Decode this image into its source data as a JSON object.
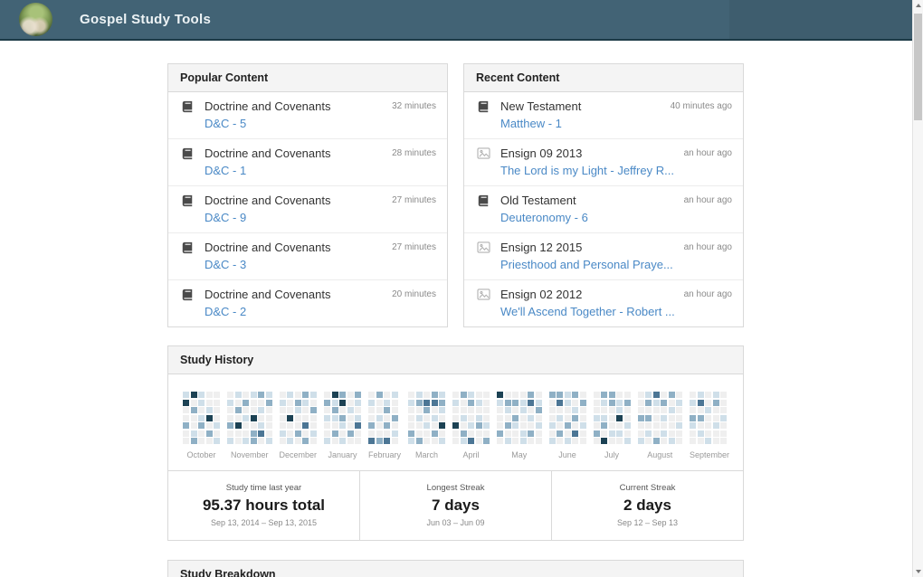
{
  "header": {
    "title": "Gospel Study Tools"
  },
  "popular": {
    "title": "Popular Content",
    "items": [
      {
        "icon": "book",
        "title": "Doctrine and Covenants",
        "link": "D&C - 5",
        "meta": "32 minutes"
      },
      {
        "icon": "book",
        "title": "Doctrine and Covenants",
        "link": "D&C - 1",
        "meta": "28 minutes"
      },
      {
        "icon": "book",
        "title": "Doctrine and Covenants",
        "link": "D&C - 9",
        "meta": "27 minutes"
      },
      {
        "icon": "book",
        "title": "Doctrine and Covenants",
        "link": "D&C - 3",
        "meta": "27 minutes"
      },
      {
        "icon": "book",
        "title": "Doctrine and Covenants",
        "link": "D&C - 2",
        "meta": "20 minutes"
      }
    ]
  },
  "recent": {
    "title": "Recent Content",
    "items": [
      {
        "icon": "book",
        "title": "New Testament",
        "link": "Matthew - 1",
        "meta": "40 minutes ago"
      },
      {
        "icon": "magazine",
        "title": "Ensign 09 2013",
        "link": "The Lord is my Light - Jeffrey R...",
        "meta": "an hour ago"
      },
      {
        "icon": "book",
        "title": "Old Testament",
        "link": "Deuteronomy - 6",
        "meta": "an hour ago"
      },
      {
        "icon": "magazine",
        "title": "Ensign 12 2015",
        "link": "Priesthood and Personal Praye...",
        "meta": "an hour ago"
      },
      {
        "icon": "magazine",
        "title": "Ensign 02 2012",
        "link": "We'll Ascend Together - Robert ...",
        "meta": "an hour ago"
      }
    ]
  },
  "study_history": {
    "title": "Study History",
    "stats": [
      {
        "label": "Study time last year",
        "value": "95.37 hours total",
        "range": "Sep 13, 2014 – Sep 13, 2015"
      },
      {
        "label": "Longest Streak",
        "value": "7 days",
        "range": "Jun 03 – Jun 09"
      },
      {
        "label": "Current Streak",
        "value": "2 days",
        "range": "Sep 12 – Sep 13"
      }
    ]
  },
  "study_breakdown": {
    "title": "Study Breakdown"
  },
  "chart_data": {
    "type": "heatmap",
    "title": "Study History",
    "description": "Calendar heatmap of daily study time, Sep 13 2014 - Sep 13 2015. Each month block is 7 rows (days) by N columns (weeks). Levels 0 (no study, light gray) to 4 (most study, dark navy).",
    "level_colors": [
      "#efefef",
      "#cfdfe9",
      "#8fb0c5",
      "#4c7695",
      "#1c4254"
    ],
    "legend_position": "none",
    "months": [
      {
        "name": "October",
        "weeks": [
          [
            1,
            4,
            0,
            0,
            2,
            0,
            0
          ],
          [
            4,
            0,
            2,
            0,
            0,
            1,
            2
          ],
          [
            1,
            1,
            0,
            1,
            2,
            0,
            0
          ],
          [
            0,
            0,
            1,
            4,
            0,
            2,
            0
          ],
          [
            0,
            0,
            0,
            0,
            1,
            0,
            1
          ]
        ]
      },
      {
        "name": "November",
        "weeks": [
          [
            0,
            1,
            0,
            0,
            2,
            0,
            1
          ],
          [
            1,
            0,
            2,
            0,
            4,
            0,
            0
          ],
          [
            0,
            2,
            0,
            1,
            0,
            0,
            1
          ],
          [
            1,
            0,
            0,
            4,
            0,
            2,
            2
          ],
          [
            2,
            0,
            1,
            0,
            1,
            3,
            0
          ],
          [
            1,
            2,
            0,
            0,
            0,
            0,
            1
          ]
        ]
      },
      {
        "name": "December",
        "weeks": [
          [
            0,
            1,
            0,
            0,
            0,
            1,
            0
          ],
          [
            1,
            0,
            0,
            4,
            0,
            0,
            1
          ],
          [
            0,
            2,
            1,
            0,
            0,
            2,
            0
          ],
          [
            2,
            1,
            0,
            0,
            3,
            0,
            2
          ],
          [
            1,
            0,
            2,
            0,
            0,
            1,
            0
          ]
        ]
      },
      {
        "name": "January",
        "weeks": [
          [
            0,
            2,
            0,
            1,
            0,
            0,
            1
          ],
          [
            4,
            1,
            2,
            1,
            0,
            2,
            0
          ],
          [
            2,
            4,
            0,
            2,
            1,
            0,
            1
          ],
          [
            0,
            0,
            1,
            0,
            0,
            2,
            0
          ],
          [
            2,
            1,
            0,
            1,
            3,
            0,
            0
          ]
        ]
      },
      {
        "name": "February",
        "weeks": [
          [
            0,
            1,
            0,
            0,
            2,
            0,
            3
          ],
          [
            2,
            0,
            0,
            1,
            0,
            0,
            2
          ],
          [
            0,
            1,
            2,
            0,
            2,
            0,
            3
          ],
          [
            1,
            0,
            0,
            2,
            0,
            1,
            0
          ]
        ]
      },
      {
        "name": "March",
        "weeks": [
          [
            0,
            1,
            0,
            0,
            0,
            2,
            1
          ],
          [
            1,
            2,
            0,
            1,
            0,
            0,
            2
          ],
          [
            0,
            3,
            2,
            0,
            1,
            0,
            0
          ],
          [
            2,
            3,
            0,
            1,
            0,
            2,
            0
          ],
          [
            1,
            2,
            1,
            0,
            4,
            0,
            1
          ]
        ]
      },
      {
        "name": "April",
        "weeks": [
          [
            0,
            1,
            0,
            0,
            4,
            0,
            0
          ],
          [
            2,
            0,
            0,
            1,
            0,
            2,
            1
          ],
          [
            1,
            2,
            0,
            0,
            1,
            0,
            3
          ],
          [
            0,
            1,
            0,
            1,
            2,
            0,
            0
          ],
          [
            0,
            0,
            0,
            0,
            1,
            0,
            2
          ]
        ]
      },
      {
        "name": "May",
        "weeks": [
          [
            4,
            1,
            0,
            0,
            0,
            2,
            0
          ],
          [
            0,
            2,
            1,
            0,
            2,
            0,
            1
          ],
          [
            0,
            2,
            0,
            2,
            1,
            0,
            0
          ],
          [
            0,
            1,
            1,
            0,
            0,
            1,
            1
          ],
          [
            2,
            3,
            0,
            1,
            0,
            2,
            0
          ],
          [
            0,
            1,
            2,
            0,
            1,
            0,
            0
          ]
        ]
      },
      {
        "name": "June",
        "weeks": [
          [
            2,
            0,
            0,
            0,
            1,
            0,
            1
          ],
          [
            2,
            3,
            0,
            1,
            0,
            2,
            0
          ],
          [
            1,
            1,
            0,
            0,
            2,
            0,
            1
          ],
          [
            2,
            0,
            1,
            2,
            0,
            3,
            0
          ],
          [
            0,
            2,
            0,
            0,
            1,
            0,
            0
          ]
        ]
      },
      {
        "name": "July",
        "weeks": [
          [
            0,
            0,
            0,
            1,
            0,
            2,
            0
          ],
          [
            2,
            1,
            0,
            1,
            2,
            0,
            4
          ],
          [
            2,
            2,
            0,
            0,
            0,
            1,
            0
          ],
          [
            0,
            1,
            1,
            4,
            0,
            1,
            0
          ],
          [
            0,
            2,
            0,
            0,
            1,
            0,
            1
          ]
        ]
      },
      {
        "name": "August",
        "weeks": [
          [
            0,
            0,
            0,
            2,
            0,
            0,
            1
          ],
          [
            1,
            2,
            0,
            2,
            0,
            1,
            0
          ],
          [
            3,
            1,
            0,
            0,
            0,
            0,
            2
          ],
          [
            0,
            2,
            0,
            1,
            0,
            1,
            0
          ],
          [
            2,
            0,
            1,
            0,
            0,
            0,
            1
          ],
          [
            0,
            1,
            0,
            0,
            1,
            0,
            0
          ]
        ]
      },
      {
        "name": "September",
        "weeks": [
          [
            0,
            1,
            0,
            2,
            1,
            0,
            0
          ],
          [
            1,
            3,
            0,
            2,
            0,
            1,
            0
          ],
          [
            0,
            0,
            1,
            0,
            0,
            0,
            1
          ],
          [
            1,
            2,
            0,
            0,
            1,
            0,
            0
          ],
          [
            0,
            0,
            0,
            1,
            0,
            0,
            0
          ]
        ]
      }
    ]
  }
}
